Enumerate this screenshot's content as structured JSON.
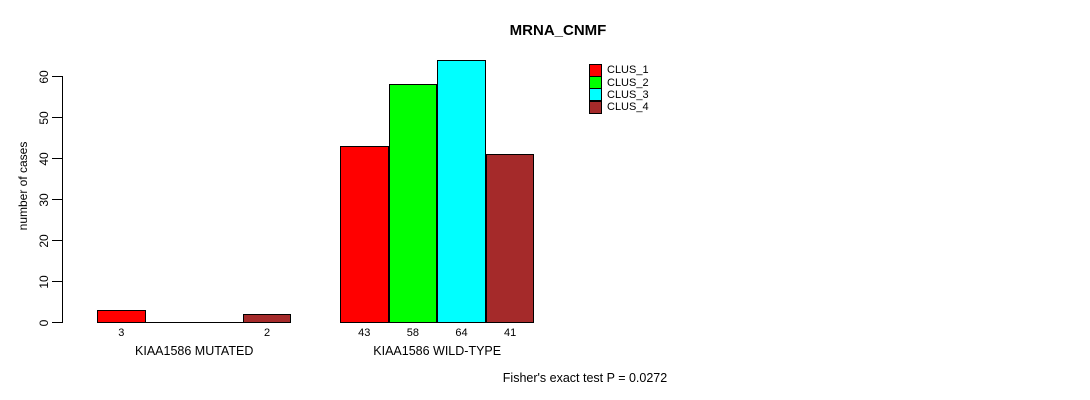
{
  "chart_data": {
    "type": "bar",
    "title": "MRNA_CNMF",
    "ylabel": "number of cases",
    "xlabel": "",
    "ylim": [
      0,
      60
    ],
    "yticks": [
      0,
      10,
      20,
      30,
      40,
      50,
      60
    ],
    "grid": false,
    "legend_position": "top-right",
    "bar_border_color": "#000000",
    "background_color": "#ffffff",
    "categories": [
      "KIAA1586 MUTATED",
      "KIAA1586 WILD-TYPE"
    ],
    "series": [
      {
        "name": "CLUS_1",
        "color": "#FF0000",
        "values": [
          3,
          43
        ]
      },
      {
        "name": "CLUS_2",
        "color": "#00FF00",
        "values": [
          0,
          58
        ]
      },
      {
        "name": "CLUS_3",
        "color": "#00FFFF",
        "values": [
          0,
          64
        ]
      },
      {
        "name": "CLUS_4",
        "color": "#A52A2A",
        "values": [
          2,
          41
        ]
      }
    ],
    "annotation": "Fisher's exact test P = 0.0272"
  }
}
